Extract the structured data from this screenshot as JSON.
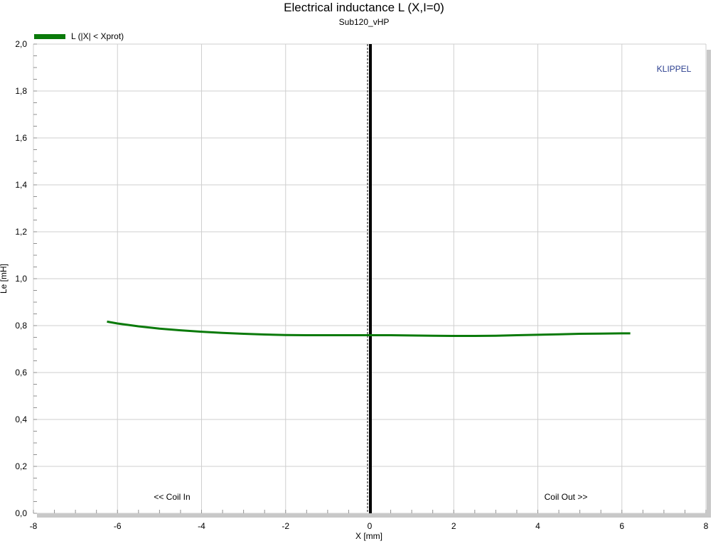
{
  "chart_data": {
    "type": "line",
    "title": "Electrical inductance L (X,I=0)",
    "subtitle": "Sub120_vHP",
    "xlabel": "X [mm]",
    "ylabel": "Le [mH]",
    "xlim": [
      -8,
      8
    ],
    "ylim": [
      0,
      2.0
    ],
    "x_ticks": [
      "-8",
      "-6",
      "-4",
      "-2",
      "0",
      "2",
      "4",
      "6",
      "8"
    ],
    "y_ticks": [
      "0,0",
      "0,2",
      "0,4",
      "0,6",
      "0,8",
      "1,0",
      "1,2",
      "1,4",
      "1,6",
      "1,8",
      "2,0"
    ],
    "grid": true,
    "legend_position": "top-left",
    "series": [
      {
        "name": "L (|X| < Xprot)",
        "color": "#0a7a0a",
        "x": [
          -6.25,
          -6.0,
          -5.5,
          -5.0,
          -4.5,
          -4.0,
          -3.5,
          -3.0,
          -2.5,
          -2.0,
          -1.5,
          -1.0,
          -0.5,
          0.0,
          0.5,
          1.0,
          1.5,
          2.0,
          2.5,
          3.0,
          3.5,
          4.0,
          4.5,
          5.0,
          5.5,
          6.0,
          6.2
        ],
        "values": [
          0.817,
          0.809,
          0.797,
          0.787,
          0.78,
          0.774,
          0.769,
          0.765,
          0.762,
          0.76,
          0.759,
          0.759,
          0.759,
          0.759,
          0.759,
          0.758,
          0.757,
          0.756,
          0.756,
          0.757,
          0.759,
          0.761,
          0.763,
          0.765,
          0.766,
          0.767,
          0.767
        ]
      }
    ],
    "reference_line": {
      "x": 0,
      "color": "#000000"
    },
    "annotations": {
      "left": "<< Coil In",
      "right": "Coil Out >>",
      "brand": "KLIPPEL"
    }
  }
}
